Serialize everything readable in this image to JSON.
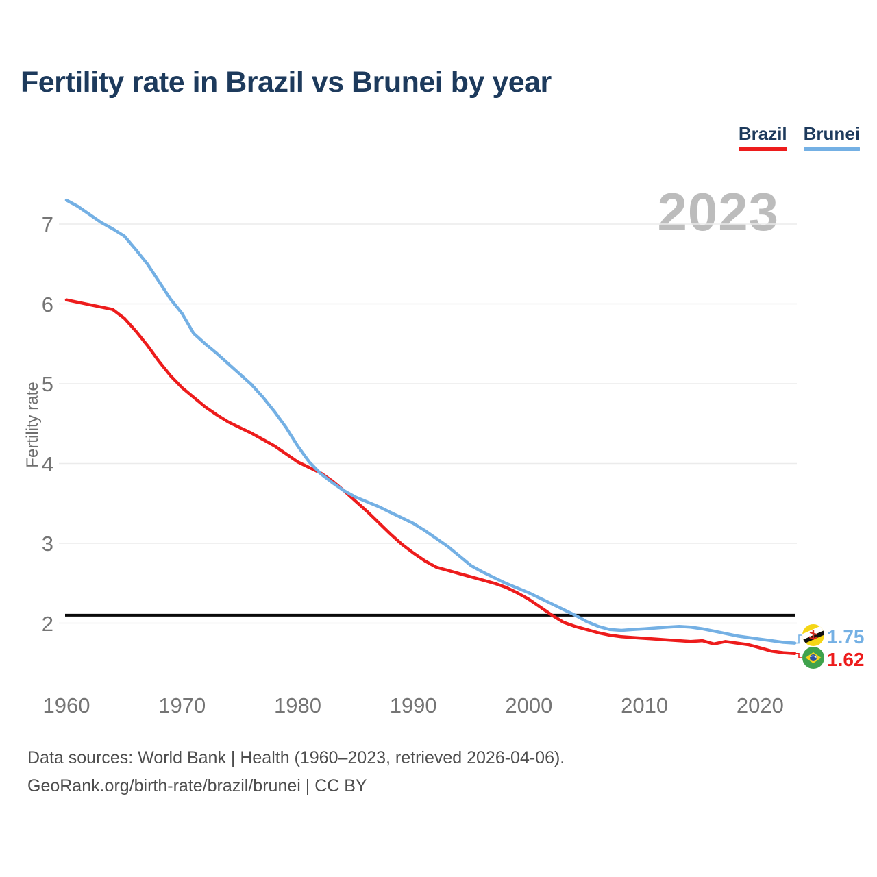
{
  "title": "Fertility rate in Brazil vs Brunei by year",
  "watermark_year": "2023",
  "legend": [
    {
      "label": "Brazil",
      "color": "#ed1c1c"
    },
    {
      "label": "Brunei",
      "color": "#74b0e4"
    }
  ],
  "chart_data": {
    "type": "line",
    "title": "Fertility rate in Brazil vs Brunei by year",
    "ylabel": "Fertility rate",
    "xlabel": "",
    "grid": true,
    "legend_position": "top-right",
    "y_ticks": [
      2,
      3,
      4,
      5,
      6,
      7
    ],
    "x_ticks": [
      1960,
      1970,
      1980,
      1990,
      2000,
      2010,
      2020
    ],
    "ylim": [
      1.5,
      7.5
    ],
    "xlim": [
      1960,
      2023
    ],
    "reference_line": 2.1,
    "years": [
      1960,
      1961,
      1962,
      1963,
      1964,
      1965,
      1966,
      1967,
      1968,
      1969,
      1970,
      1971,
      1972,
      1973,
      1974,
      1975,
      1976,
      1977,
      1978,
      1979,
      1980,
      1981,
      1982,
      1983,
      1984,
      1985,
      1986,
      1987,
      1988,
      1989,
      1990,
      1991,
      1992,
      1993,
      1994,
      1995,
      1996,
      1997,
      1998,
      1999,
      2000,
      2001,
      2002,
      2003,
      2004,
      2005,
      2006,
      2007,
      2008,
      2009,
      2010,
      2011,
      2012,
      2013,
      2014,
      2015,
      2016,
      2017,
      2018,
      2019,
      2020,
      2021,
      2022,
      2023
    ],
    "series": [
      {
        "name": "Brazil",
        "color": "#ed1c1c",
        "end_label": "1.62",
        "flag": "brazil",
        "values": [
          6.05,
          6.02,
          5.99,
          5.96,
          5.93,
          5.82,
          5.66,
          5.48,
          5.28,
          5.1,
          4.95,
          4.83,
          4.71,
          4.61,
          4.52,
          4.45,
          4.38,
          4.3,
          4.22,
          4.12,
          4.02,
          3.95,
          3.88,
          3.78,
          3.66,
          3.53,
          3.4,
          3.26,
          3.12,
          2.99,
          2.88,
          2.78,
          2.7,
          2.66,
          2.62,
          2.58,
          2.54,
          2.5,
          2.45,
          2.38,
          2.3,
          2.2,
          2.1,
          2.01,
          1.96,
          1.92,
          1.88,
          1.85,
          1.83,
          1.82,
          1.81,
          1.8,
          1.79,
          1.78,
          1.77,
          1.78,
          1.74,
          1.77,
          1.75,
          1.73,
          1.69,
          1.65,
          1.63,
          1.62
        ]
      },
      {
        "name": "Brunei",
        "color": "#74b0e4",
        "end_label": "1.75",
        "flag": "brunei",
        "values": [
          7.3,
          7.22,
          7.12,
          7.02,
          6.94,
          6.85,
          6.68,
          6.5,
          6.28,
          6.06,
          5.88,
          5.63,
          5.5,
          5.38,
          5.25,
          5.12,
          4.99,
          4.83,
          4.65,
          4.45,
          4.22,
          4.02,
          3.87,
          3.76,
          3.66,
          3.58,
          3.52,
          3.46,
          3.39,
          3.32,
          3.25,
          3.16,
          3.06,
          2.96,
          2.84,
          2.72,
          2.64,
          2.57,
          2.5,
          2.44,
          2.38,
          2.31,
          2.24,
          2.17,
          2.1,
          2.02,
          1.96,
          1.92,
          1.91,
          1.92,
          1.93,
          1.94,
          1.95,
          1.96,
          1.95,
          1.93,
          1.9,
          1.87,
          1.84,
          1.82,
          1.8,
          1.78,
          1.76,
          1.75
        ]
      }
    ]
  },
  "footer": {
    "line1": "Data sources: World Bank | Health (1960–2023, retrieved 2026-04-06).",
    "line2": "GeoRank.org/birth-rate/brazil/brunei | CC BY"
  },
  "colors": {
    "title": "#1d3a5c",
    "watermark": "#bcbcbc",
    "gridline": "#ebebeb",
    "tick": "#757575",
    "reference_line": "#0a0a0a",
    "footer": "#4d4d4d"
  }
}
